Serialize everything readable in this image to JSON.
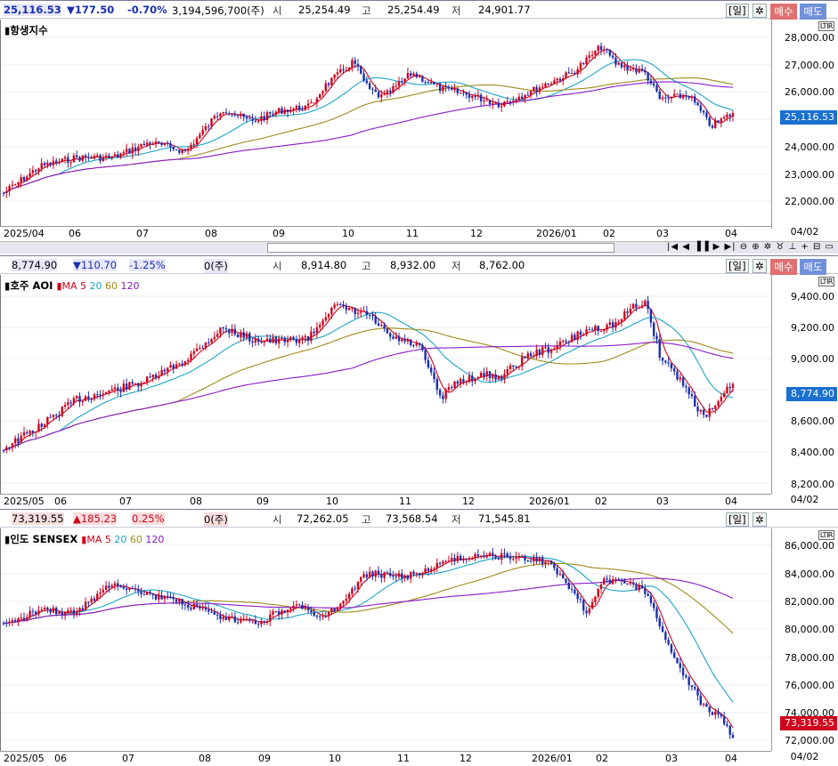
{
  "panels": [
    {
      "id": "hsi",
      "quote": {
        "price": "25,116.53",
        "change": "▼177.50",
        "pct": "-0.70%",
        "volume": "3,194,596,700(주)",
        "open_label": "시",
        "open": "25,254.49",
        "high_label": "고",
        "high": "25,254.49",
        "low_label": "저",
        "low": "24,901.77"
      },
      "title": "▮항생지수",
      "ma_legend": "",
      "period_label": "[일]",
      "buy_label": "매수",
      "sell_label": "매도",
      "ltr": "LTIR",
      "y_ticks": [
        "28,000.00",
        "27,000.00",
        "26,000.00",
        "25,000.00",
        "24,000.00",
        "23,000.00",
        "22,000.00"
      ],
      "x_ticks": [
        "2025/04",
        "06",
        "07",
        "08",
        "09",
        "10",
        "11",
        "12",
        "2026/01",
        "02",
        "03",
        "04"
      ],
      "last_date": "04/02",
      "current_price": "25,116.53",
      "colors": {
        "candle_up": "#d0021b",
        "candle_down": "#1a2fb0",
        "ma5": "#d0021b",
        "ma20": "#1aa6c8",
        "ma60": "#a08a1a",
        "ma120": "#8a1ac8",
        "price_tag": "#1a6fd0"
      }
    },
    {
      "id": "aoi",
      "quote": {
        "price": "8,774.90",
        "change": "▼110.70",
        "pct": "-1.25%",
        "volume": "0(주)",
        "open_label": "시",
        "open": "8,914.80",
        "high_label": "고",
        "high": "8,932.00",
        "low_label": "저",
        "low": "8,762.00"
      },
      "title": "▮호주 AOI",
      "ma_legend": "▮MA",
      "ma_values": [
        "5",
        "20",
        "60",
        "120"
      ],
      "period_label": "[일]",
      "buy_label": "매수",
      "sell_label": "매도",
      "ltr": "LTIR",
      "y_ticks": [
        "9,400.00",
        "9,200.00",
        "9,000.00",
        "8,800.00",
        "8,600.00",
        "8,400.00",
        "8,200.00"
      ],
      "x_ticks": [
        "2025/05",
        "06",
        "07",
        "08",
        "09",
        "10",
        "11",
        "12",
        "2026/01",
        "02",
        "03",
        "04"
      ],
      "last_date": "04/02",
      "current_price": "8,774.90",
      "colors": {
        "price_tag": "#1a6fd0"
      }
    },
    {
      "id": "sensex",
      "quote": {
        "price": "73,319.55",
        "change": "▲185.23",
        "pct": "0.25%",
        "volume": "0(주)",
        "open_label": "시",
        "open": "72,262.05",
        "high_label": "고",
        "high": "73,568.54",
        "low_label": "저",
        "low": "71,545.81"
      },
      "title": "▮인도 SENSEX",
      "ma_legend": "▮MA",
      "ma_values": [
        "5",
        "20",
        "60",
        "120"
      ],
      "period_label": "[일]",
      "ltr": "LTIR",
      "y_ticks": [
        "86,000.00",
        "84,000.00",
        "82,000.00",
        "80,000.00",
        "78,000.00",
        "76,000.00",
        "74,000.00",
        "72,000.00"
      ],
      "x_ticks": [
        "2025/05",
        "06",
        "07",
        "08",
        "09",
        "10",
        "11",
        "12",
        "2026/01",
        "02",
        "03",
        "04"
      ],
      "last_date": "04/02",
      "current_price": "73,319.55",
      "colors": {
        "price_tag": "#d0021b"
      }
    }
  ],
  "nav_icons": "|◀ ◀ ▐▐ ▶ ▶| ⊖ ⊕ ✲ ♉ ⊥ + ⊟ ▭"
}
